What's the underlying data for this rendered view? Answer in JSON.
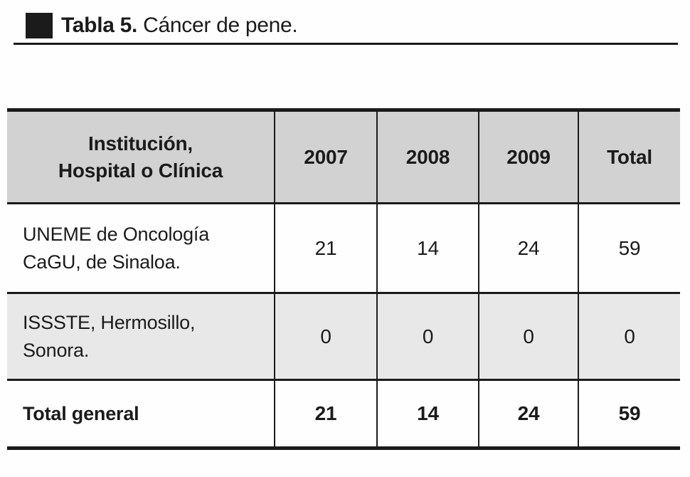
{
  "colors": {
    "ink": "#1b1b1b",
    "header_bg": "#d2d2d2",
    "alt_row_bg": "#e8e8e8",
    "page_bg": "#fefefe"
  },
  "caption": {
    "label": "Tabla 5.",
    "title": "Cáncer de pene."
  },
  "table": {
    "header": {
      "institution_line1": "Institución,",
      "institution_line2": "Hospital o Clínica",
      "col_2007": "2007",
      "col_2008": "2008",
      "col_2009": "2009",
      "col_total": "Total"
    },
    "rows": [
      {
        "institution_line1": "UNEME de Oncología",
        "institution_line2": "CaGU, de Sinaloa.",
        "y2007": "21",
        "y2008": "14",
        "y2009": "24",
        "total": "59"
      },
      {
        "institution_line1": "ISSSTE, Hermosillo,",
        "institution_line2": "Sonora.",
        "y2007": "0",
        "y2008": "0",
        "y2009": "0",
        "total": "0"
      }
    ],
    "footer": {
      "label": "Total general",
      "y2007": "21",
      "y2008": "14",
      "y2009": "24",
      "total": "59"
    }
  }
}
